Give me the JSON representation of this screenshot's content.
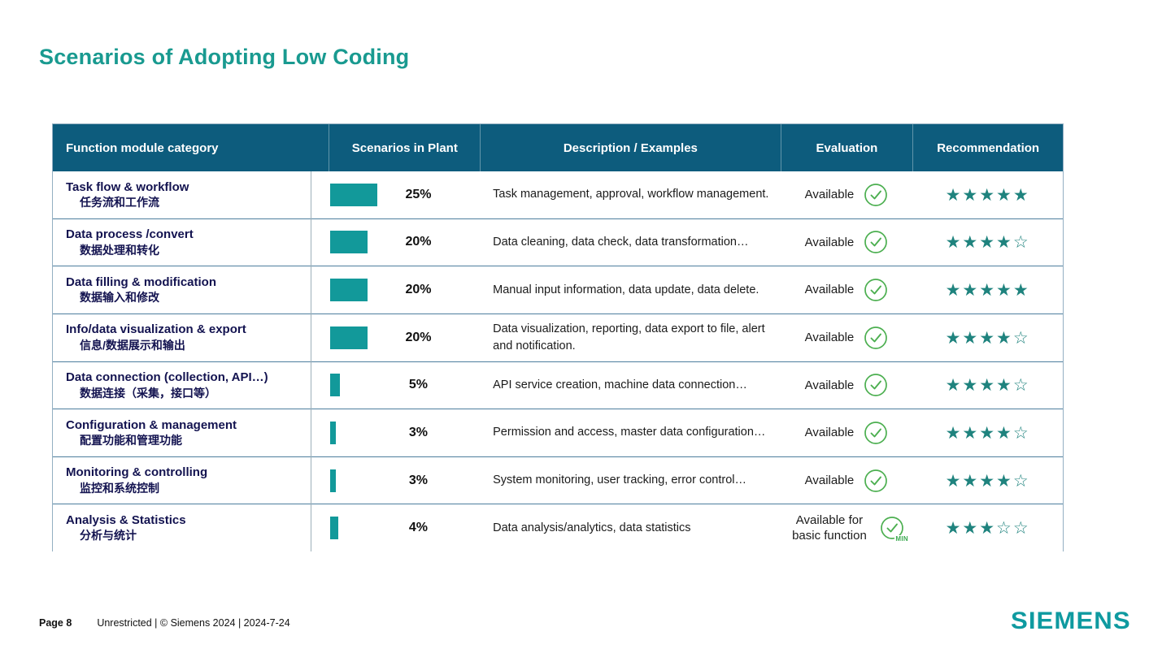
{
  "title": "Scenarios of Adopting Low Coding",
  "colors": {
    "title_teal": "#199a90",
    "header_bg": "#0d5c7d",
    "bar_teal": "#12999a",
    "star_teal": "#1f837e",
    "check_green": "#4caf50",
    "logo_teal": "#0f9aa0",
    "row_line": "#4d7e9e",
    "category_navy": "#131350"
  },
  "table": {
    "headers": [
      "Function module category",
      "Scenarios in Plant",
      "Description / Examples",
      "Evaluation",
      "Recommendation"
    ],
    "rows": [
      {
        "category_en": "Task flow & workflow",
        "category_zh": "任务流和工作流",
        "percent": "25%",
        "percent_value": 25,
        "description": "Task management, approval, workflow management.",
        "evaluation": "Available",
        "icon": "check-circle",
        "stars": 5
      },
      {
        "category_en": "Data process /convert",
        "category_zh": "数据处理和转化",
        "percent": "20%",
        "percent_value": 20,
        "description": "Data cleaning, data check, data transformation…",
        "evaluation": "Available",
        "icon": "check-circle",
        "stars": 4
      },
      {
        "category_en": "Data filling & modification",
        "category_zh": "数据输入和修改",
        "percent": "20%",
        "percent_value": 20,
        "description": "Manual input information, data update, data delete.",
        "evaluation": "Available",
        "icon": "check-circle",
        "stars": 5
      },
      {
        "category_en": "Info/data visualization & export",
        "category_zh": "信息/数据展示和输出",
        "percent": "20%",
        "percent_value": 20,
        "description": "Data visualization, reporting, data export to file, alert and notification.",
        "evaluation": "Available",
        "icon": "check-circle",
        "stars": 4
      },
      {
        "category_en": "Data connection (collection, API…)",
        "category_zh": "数据连接（采集，接口等）",
        "percent": "5%",
        "percent_value": 5,
        "description": "API service creation, machine data connection…",
        "evaluation": "Available",
        "icon": "check-circle",
        "stars": 4
      },
      {
        "category_en": "Configuration & management",
        "category_zh": "配置功能和管理功能",
        "percent": "3%",
        "percent_value": 3,
        "description": "Permission and access, master data configuration…",
        "evaluation": "Available",
        "icon": "check-circle",
        "stars": 4
      },
      {
        "category_en": "Monitoring & controlling",
        "category_zh": "监控和系统控制",
        "percent": "3%",
        "percent_value": 3,
        "description": "System monitoring, user tracking, error control…",
        "evaluation": "Available",
        "icon": "check-circle",
        "stars": 4
      },
      {
        "category_en": "Analysis & Statistics",
        "category_zh": "分析与统计",
        "percent": "4%",
        "percent_value": 4,
        "description": "Data analysis/analytics, data statistics",
        "evaluation": "Available for basic function",
        "icon": "check-circle-min",
        "stars": 3
      }
    ],
    "star_scale": 5,
    "min_badge": "MIN"
  },
  "footer": {
    "page": "Page 8",
    "info": "Unrestricted | © Siemens 2024 | 2024-7-24",
    "logo": "SIEMENS"
  }
}
